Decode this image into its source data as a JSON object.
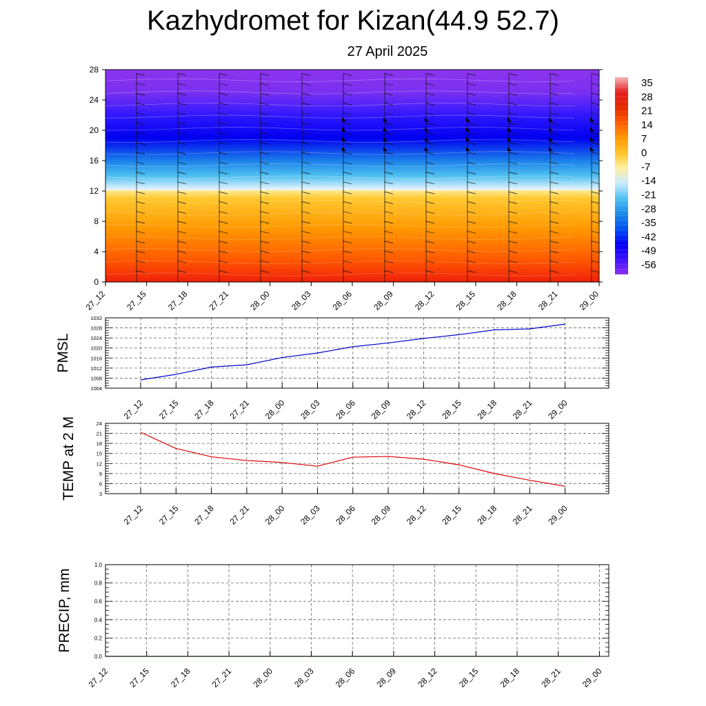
{
  "title": "Kazhydromet for Kizan(44.9 52.7)",
  "subtitle": "27 April 2025",
  "colors": {
    "pmsl_line": "#0000cc",
    "temp_line": "#e00000",
    "precip_line": "#006400",
    "grid": "#666666"
  },
  "colorbar": {
    "labels": [
      "35",
      "28",
      "21",
      "14",
      "7",
      "0",
      "-7",
      "-14",
      "-21",
      "-28",
      "-35",
      "-42",
      "-49",
      "-56"
    ],
    "stops": [
      "#f4b6b6",
      "#e51e1e",
      "#e52a00",
      "#ff5a00",
      "#ff9800",
      "#ffc426",
      "#fff0a0",
      "#c8eaff",
      "#4ec0f0",
      "#1a8ae8",
      "#0050f0",
      "#0000f8",
      "#3a10ff",
      "#8a30f0"
    ]
  },
  "chart_data": [
    {
      "type": "heatmap",
      "name": "upper",
      "x_ticks": [
        "27_12",
        "27_15",
        "27_18",
        "27_21",
        "28_00",
        "28_03",
        "28_06",
        "28_09",
        "28_12",
        "28_15",
        "28_18",
        "28_21",
        "29_00"
      ],
      "y_ticks": [
        "0",
        "4",
        "8",
        "12",
        "16",
        "20",
        "24",
        "28"
      ],
      "ylim": [
        0,
        28
      ],
      "bands": [
        {
          "y": 0,
          "color": "#f0200a"
        },
        {
          "y": 3,
          "color": "#ff5a00"
        },
        {
          "y": 7,
          "color": "#ff9800"
        },
        {
          "y": 11,
          "color": "#ffc830"
        },
        {
          "y": 12,
          "color": "#ffe88a"
        },
        {
          "y": 12.2,
          "color": "#e6f4ff"
        },
        {
          "y": 14,
          "color": "#4ec0f0"
        },
        {
          "y": 16,
          "color": "#1a80ea"
        },
        {
          "y": 19,
          "color": "#0000f0"
        },
        {
          "y": 22,
          "color": "#3018ff"
        },
        {
          "y": 25,
          "color": "#7a30f0"
        },
        {
          "y": 28,
          "color": "#8c34ee"
        }
      ]
    },
    {
      "type": "line",
      "name": "PMSL",
      "ylabel": "PMSL",
      "x": [
        "27_12",
        "27_15",
        "27_18",
        "27_21",
        "28_00",
        "28_03",
        "28_06",
        "28_09",
        "28_12",
        "28_15",
        "28_18",
        "28_21",
        "29_00"
      ],
      "values": [
        1007.3,
        1009.5,
        1012.4,
        1013.3,
        1016.2,
        1018.0,
        1020.5,
        1022.0,
        1023.8,
        1025.3,
        1027.2,
        1027.6,
        1029.5
      ],
      "ylim": [
        1004,
        1032
      ],
      "y_ticks": [
        "1004",
        "1008",
        "1012",
        "1016",
        "1020",
        "1024",
        "1028",
        "1032"
      ],
      "grid": true
    },
    {
      "type": "line",
      "name": "TEMP",
      "ylabel": "TEMP at 2 M",
      "x": [
        "27_12",
        "27_15",
        "27_18",
        "27_21",
        "28_00",
        "28_03",
        "28_06",
        "28_09",
        "28_12",
        "28_15",
        "28_18",
        "28_21",
        "29_00"
      ],
      "values": [
        21.3,
        16.5,
        14.0,
        12.9,
        12.3,
        11.2,
        13.9,
        14.1,
        13.3,
        11.6,
        9.0,
        7.0,
        5.2
      ],
      "ylim": [
        3,
        24
      ],
      "y_ticks": [
        "3",
        "6",
        "9",
        "12",
        "15",
        "18",
        "21",
        "24"
      ],
      "grid": true
    },
    {
      "type": "line",
      "name": "PRECIP",
      "ylabel": "PRECIP, mm",
      "x": [
        "27_12",
        "27_15",
        "27_18",
        "27_21",
        "28_00",
        "28_03",
        "28_06",
        "28_09",
        "28_12",
        "28_15",
        "28_18",
        "28_21",
        "29_00"
      ],
      "values": [
        0,
        0,
        0,
        0,
        0,
        0,
        0,
        0,
        0,
        0,
        0,
        0,
        0
      ],
      "ylim": [
        0,
        1
      ],
      "y_ticks": [
        "0.0",
        "0.2",
        "0.4",
        "0.6",
        "0.8",
        "1.0"
      ],
      "grid": true
    }
  ]
}
